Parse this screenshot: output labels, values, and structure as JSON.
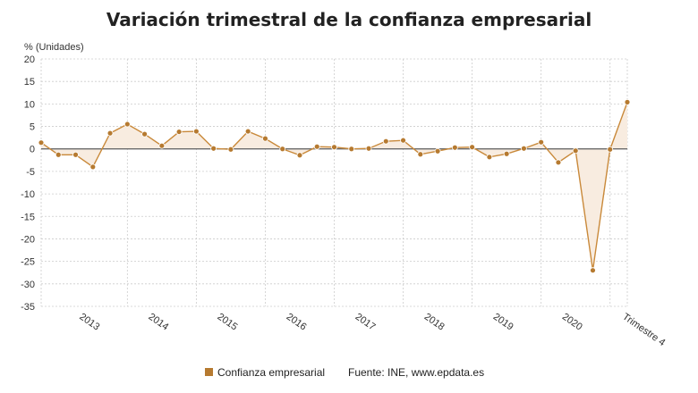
{
  "chart_data": {
    "type": "area",
    "title": "Variación trimestral de la confianza empresarial",
    "ylabel": "% (Unidades)",
    "xlabel": "",
    "ylim": [
      -35,
      20
    ],
    "yticks": [
      20,
      15,
      10,
      5,
      0,
      -5,
      -10,
      -15,
      -20,
      -25,
      -30,
      -35
    ],
    "grid": true,
    "legend_position": "bottom-center",
    "x_tick_labels": [
      "2013",
      "2014",
      "2015",
      "2016",
      "2017",
      "2018",
      "2019",
      "2020",
      "Trimestre 4"
    ],
    "series": [
      {
        "name": "Confianza empresarial",
        "values": [
          1.4,
          -1.3,
          -1.3,
          -4.0,
          3.5,
          5.5,
          3.3,
          0.7,
          3.8,
          3.9,
          0.1,
          -0.1,
          3.9,
          2.3,
          0.0,
          -1.4,
          0.5,
          0.4,
          0.0,
          0.1,
          1.7,
          1.9,
          -1.2,
          -0.5,
          0.3,
          0.4,
          -1.8,
          -1.1,
          0.1,
          1.5,
          -3.0,
          -0.4,
          -27.0,
          -0.1,
          10.4
        ]
      }
    ],
    "colors": {
      "line": "#c9893a",
      "marker": "#b67a30",
      "fill": "#f8ece0",
      "zero_line": "#6a6a6a",
      "grid": "#cccccc"
    },
    "source": "Fuente: INE, www.epdata.es"
  }
}
